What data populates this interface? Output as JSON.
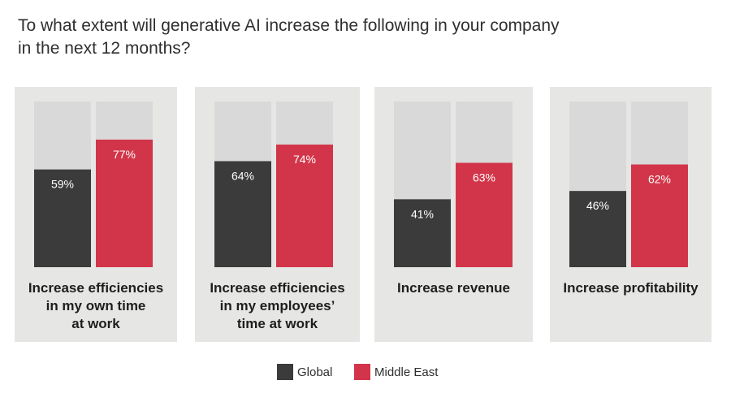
{
  "title": "To what extent will generative AI increase the following in your company\n in the next 12 months?",
  "colors": {
    "panel": "#e6e6e4",
    "track": "#d9d9d9",
    "global": "#3b3b3b",
    "middle_east": "#d23549",
    "label": "#1e1e1e"
  },
  "legend": [
    {
      "name": "Global",
      "color": "#3b3b3b"
    },
    {
      "name": "Middle East",
      "color": "#d23549"
    }
  ],
  "chart_data": {
    "type": "bar",
    "title": "To what extent will generative AI increase the following in your company in the next 12 months?",
    "categories": [
      "Increase efficiencies\nin my own time\nat work",
      "Increase efficiencies\nin my employees’\ntime at work",
      "Increase revenue",
      "Increase profitability"
    ],
    "series": [
      {
        "name": "Global",
        "values": [
          59,
          64,
          41,
          46
        ],
        "labels": [
          "59%",
          "64%",
          "41%",
          "46%"
        ]
      },
      {
        "name": "Middle East",
        "values": [
          77,
          74,
          63,
          62
        ],
        "labels": [
          "77%",
          "74%",
          "63%",
          "62%"
        ]
      }
    ],
    "ylim": [
      0,
      100
    ],
    "legend_position": "bottom-center",
    "grid": false
  }
}
